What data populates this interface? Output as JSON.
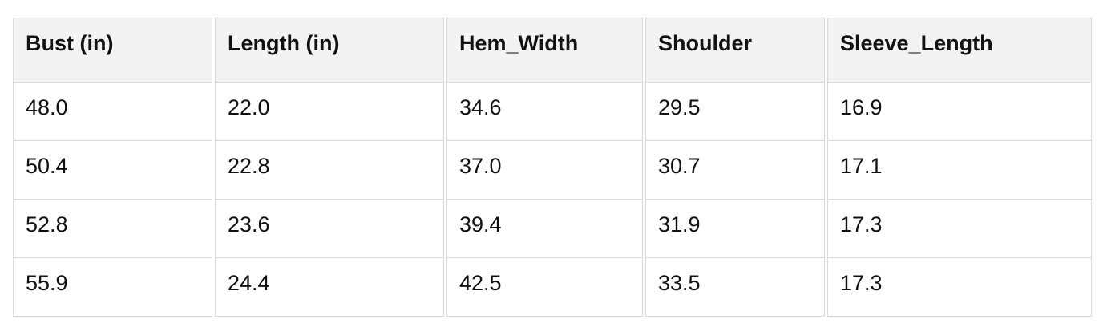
{
  "table": {
    "columns": [
      "Bust (in)",
      "Length (in)",
      "Hem_Width",
      "Shoulder",
      "Sleeve_Length"
    ],
    "rows": [
      [
        "48.0",
        "22.0",
        "34.6",
        "29.5",
        "16.9"
      ],
      [
        "50.4",
        "22.8",
        "37.0",
        "30.7",
        "17.1"
      ],
      [
        "52.8",
        "23.6",
        "39.4",
        "31.9",
        "17.3"
      ],
      [
        "55.9",
        "24.4",
        "42.5",
        "33.5",
        "17.3"
      ]
    ]
  },
  "chart_data": {
    "type": "table",
    "title": "",
    "columns": [
      "Bust (in)",
      "Length (in)",
      "Hem_Width",
      "Shoulder",
      "Sleeve_Length"
    ],
    "rows": [
      [
        48.0,
        22.0,
        34.6,
        29.5,
        16.9
      ],
      [
        50.4,
        22.8,
        37.0,
        30.7,
        17.1
      ],
      [
        52.8,
        23.6,
        39.4,
        31.9,
        17.3
      ],
      [
        55.9,
        24.4,
        42.5,
        33.5,
        17.3
      ]
    ]
  },
  "colors": {
    "header_bg": "#f3f3f3",
    "row_bg": "#ffffff",
    "border": "#d9d9d9",
    "text": "#121212",
    "page_bg": "#ffffff"
  }
}
